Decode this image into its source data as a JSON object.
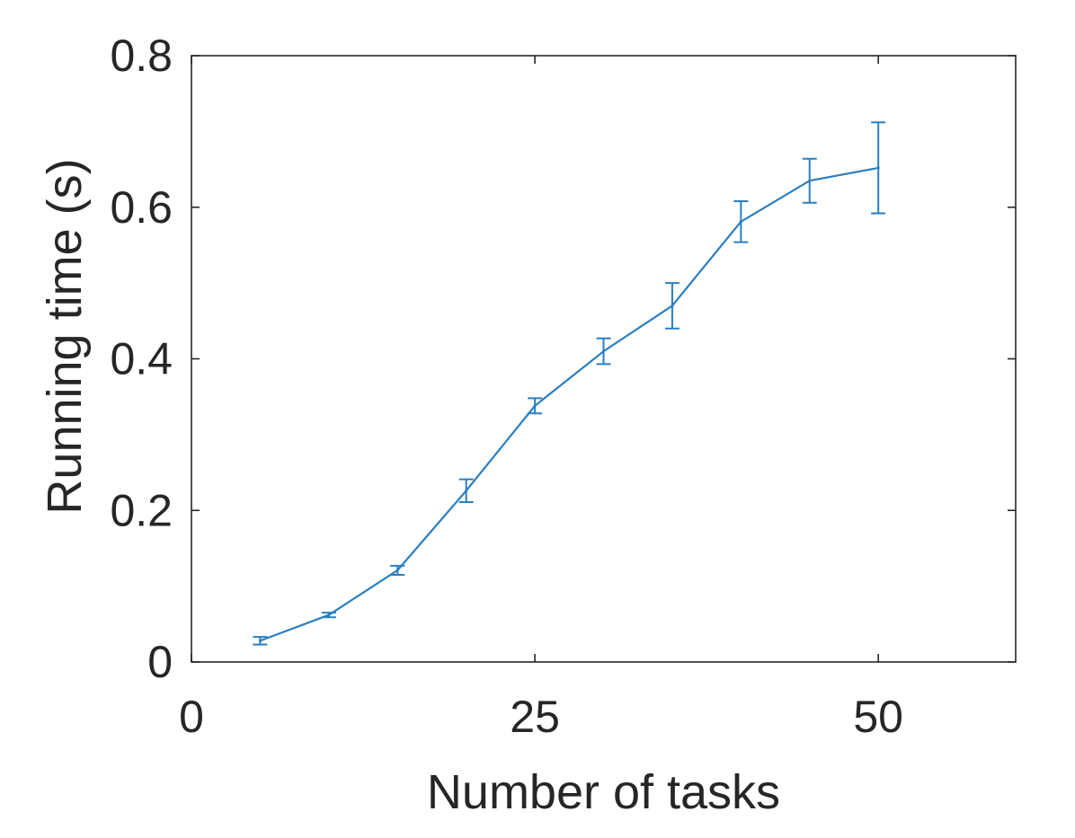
{
  "chart_data": {
    "type": "line",
    "title": "",
    "xlabel": "Number of tasks",
    "ylabel": "Running time (s)",
    "xlim": [
      0,
      60
    ],
    "ylim": [
      0,
      0.8
    ],
    "xticks": [
      0,
      25,
      50
    ],
    "xtick_labels": [
      "0",
      "25",
      "50"
    ],
    "yticks": [
      0,
      0.2,
      0.4,
      0.6,
      0.8
    ],
    "ytick_labels": [
      "0",
      "0.2",
      "0.4",
      "0.6",
      "0.8"
    ],
    "grid": false,
    "legend": "none",
    "series": [
      {
        "color": "#2a7fc1",
        "x": [
          5,
          10,
          15,
          20,
          25,
          30,
          35,
          40,
          45,
          50
        ],
        "y": [
          0.028,
          0.062,
          0.121,
          0.226,
          0.338,
          0.41,
          0.47,
          0.581,
          0.635,
          0.652
        ],
        "error": [
          0.005,
          0.003,
          0.006,
          0.015,
          0.01,
          0.017,
          0.03,
          0.027,
          0.029,
          0.06
        ]
      }
    ]
  }
}
